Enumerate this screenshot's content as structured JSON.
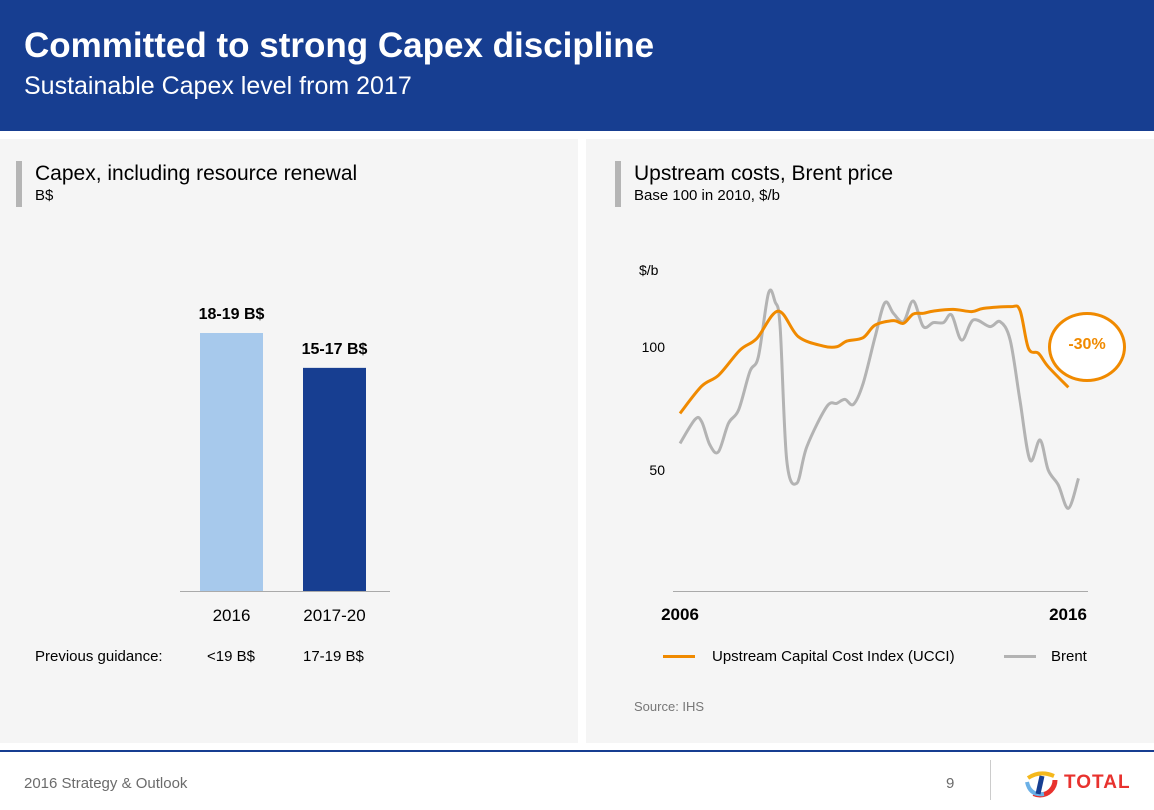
{
  "header": {
    "title": "Committed to strong Capex discipline",
    "subtitle": "Sustainable Capex level from 2017"
  },
  "left_panel": {
    "title": "Capex, including resource renewal",
    "subtitle": "B$",
    "guidance_label": "Previous guidance:",
    "guidance_values": [
      "<19 B$",
      "17-19 B$"
    ]
  },
  "right_panel": {
    "title": "Upstream costs, Brent price",
    "subtitle": "Base 100 in 2010, $/b",
    "source": "Source: IHS",
    "annotation": "-30%"
  },
  "chart_data": [
    {
      "type": "bar",
      "categories": [
        "2016",
        "2017-20"
      ],
      "values": [
        18.5,
        16
      ],
      "data_labels": [
        "18-19 B$",
        "15-17 B$"
      ],
      "colors": [
        "#a7c9ec",
        "#173e91"
      ],
      "ylim": [
        0,
        20
      ]
    },
    {
      "type": "line",
      "ylabel": "$/b",
      "yticks": [
        {
          "value": 100,
          "label": "100"
        },
        {
          "value": 50,
          "label": "50"
        }
      ],
      "xticks": [
        {
          "value": 2006,
          "label": "2006"
        },
        {
          "value": 2016,
          "label": "2016"
        }
      ],
      "xlim": [
        2006,
        2016.3
      ],
      "ylim": [
        0,
        130
      ],
      "series": [
        {
          "name": "Upstream Capital Cost Index (UCCI)",
          "color": "#f08a00",
          "x": [
            2006.0,
            2006.56,
            2007.0,
            2007.55,
            2007.98,
            2008.53,
            2009.05,
            2009.69,
            2010.04,
            2010.3,
            2010.72,
            2011.03,
            2011.5,
            2011.76,
            2012.01,
            2012.27,
            2012.53,
            2013.04,
            2013.52,
            2013.82,
            2014.51,
            2014.76,
            2014.98,
            2015.24,
            2015.49,
            2016.01
          ],
          "y": [
            73.0,
            84.1,
            88.6,
            98.8,
            103.5,
            114.6,
            104.2,
            100.4,
            100.1,
            102.4,
            103.8,
            108.9,
            110.7,
            109.6,
            113.4,
            113.7,
            114.6,
            115.3,
            114.4,
            115.7,
            116.4,
            115.0,
            99.5,
            97.4,
            92.0,
            83.6
          ]
        },
        {
          "name": "Brent",
          "color": "#b3b3b3",
          "x": [
            2006.0,
            2006.39,
            2006.56,
            2006.77,
            2006.99,
            2007.25,
            2007.51,
            2007.8,
            2008.02,
            2008.28,
            2008.45,
            2008.58,
            2008.75,
            2009.01,
            2009.27,
            2009.78,
            2010.04,
            2010.25,
            2010.47,
            2010.72,
            2011.03,
            2011.28,
            2011.5,
            2011.76,
            2012.01,
            2012.27,
            2012.53,
            2012.79,
            2013.0,
            2013.26,
            2013.56,
            2013.99,
            2014.25,
            2014.51,
            2014.76,
            2015.02,
            2015.28,
            2015.49,
            2015.75,
            2016.01,
            2016.27
          ],
          "y": [
            60.8,
            70.6,
            69.6,
            60.2,
            57.4,
            69.0,
            74.4,
            90.0,
            96.1,
            121.8,
            118.4,
            108.3,
            54.1,
            44.6,
            59.5,
            75.7,
            77.1,
            78.7,
            76.7,
            85.2,
            104.2,
            118.0,
            113.7,
            110.3,
            118.7,
            108.3,
            109.9,
            109.9,
            113.0,
            102.8,
            111.0,
            108.3,
            110.3,
            102.8,
            78.5,
            54.1,
            62.2,
            50.0,
            43.9,
            34.4,
            46.6
          ]
        }
      ]
    }
  ],
  "footer": {
    "text": "2016 Strategy & Outlook",
    "page": "9",
    "logo_text": "TOTAL"
  }
}
